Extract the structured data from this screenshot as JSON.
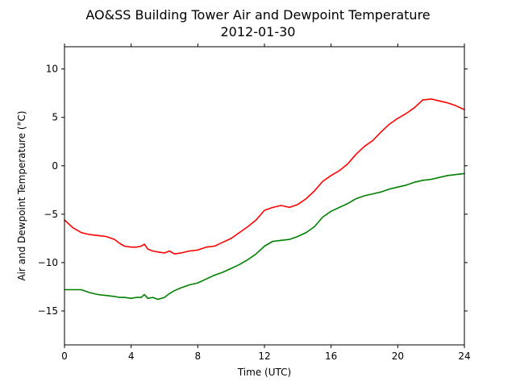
{
  "chart_data": {
    "type": "line",
    "title": "AO&SS Building Tower Air and Dewpoint Temperature",
    "subtitle": "2012-01-30",
    "xlabel": "Time (UTC)",
    "ylabel": "Air and Dewpoint Temperature (°C)",
    "xlim": [
      0,
      24
    ],
    "ylim": [
      -18.5,
      12.3
    ],
    "xticks": [
      0,
      4,
      8,
      12,
      16,
      20,
      24
    ],
    "yticks": [
      -15,
      -10,
      -5,
      0,
      5,
      10
    ],
    "grid": false,
    "legend": "none",
    "series": [
      {
        "color": "#ff0000",
        "x": [
          0,
          0.5,
          1,
          1.5,
          2,
          2.5,
          3,
          3.3,
          3.6,
          4,
          4.3,
          4.6,
          4.8,
          5,
          5.3,
          5.6,
          6,
          6.3,
          6.6,
          7,
          7.5,
          8,
          8.5,
          9,
          9.5,
          10,
          10.5,
          11,
          11.5,
          12,
          12.5,
          13,
          13.5,
          14,
          14.5,
          15,
          15.5,
          16,
          16.5,
          17,
          17.5,
          18,
          18.5,
          19,
          19.5,
          20,
          20.5,
          21,
          21.5,
          22,
          22.5,
          23,
          23.5,
          24
        ],
        "y": [
          -5.6,
          -6.4,
          -6.9,
          -7.1,
          -7.2,
          -7.3,
          -7.6,
          -8.0,
          -8.3,
          -8.4,
          -8.4,
          -8.3,
          -8.1,
          -8.6,
          -8.8,
          -8.9,
          -9.0,
          -8.8,
          -9.1,
          -9.0,
          -8.8,
          -8.7,
          -8.4,
          -8.3,
          -7.9,
          -7.5,
          -6.9,
          -6.3,
          -5.6,
          -4.6,
          -4.3,
          -4.1,
          -4.3,
          -4.0,
          -3.4,
          -2.6,
          -1.6,
          -1.0,
          -0.5,
          0.2,
          1.2,
          2.0,
          2.6,
          3.5,
          4.3,
          4.9,
          5.4,
          6.0,
          6.8,
          6.9,
          6.7,
          6.5,
          6.2,
          5.8
        ]
      },
      {
        "color": "#008000",
        "x": [
          0,
          0.5,
          1,
          1.5,
          2,
          2.5,
          3,
          3.3,
          3.6,
          4,
          4.3,
          4.6,
          4.8,
          5,
          5.3,
          5.6,
          6,
          6.3,
          6.6,
          7,
          7.5,
          8,
          8.5,
          9,
          9.5,
          10,
          10.5,
          11,
          11.5,
          12,
          12.5,
          13,
          13.5,
          14,
          14.5,
          15,
          15.5,
          16,
          16.5,
          17,
          17.5,
          18,
          18.5,
          19,
          19.5,
          20,
          20.5,
          21,
          21.5,
          22,
          22.5,
          23,
          23.5,
          24
        ],
        "y": [
          -12.8,
          -12.8,
          -12.8,
          -13.1,
          -13.3,
          -13.4,
          -13.5,
          -13.6,
          -13.6,
          -13.7,
          -13.6,
          -13.6,
          -13.3,
          -13.7,
          -13.6,
          -13.8,
          -13.6,
          -13.2,
          -12.9,
          -12.6,
          -12.3,
          -12.1,
          -11.7,
          -11.3,
          -11.0,
          -10.6,
          -10.2,
          -9.7,
          -9.1,
          -8.3,
          -7.8,
          -7.7,
          -7.6,
          -7.3,
          -6.9,
          -6.3,
          -5.3,
          -4.7,
          -4.3,
          -3.9,
          -3.4,
          -3.1,
          -2.9,
          -2.7,
          -2.4,
          -2.2,
          -2.0,
          -1.7,
          -1.5,
          -1.4,
          -1.2,
          -1.0,
          -0.9,
          -0.8
        ]
      }
    ]
  }
}
